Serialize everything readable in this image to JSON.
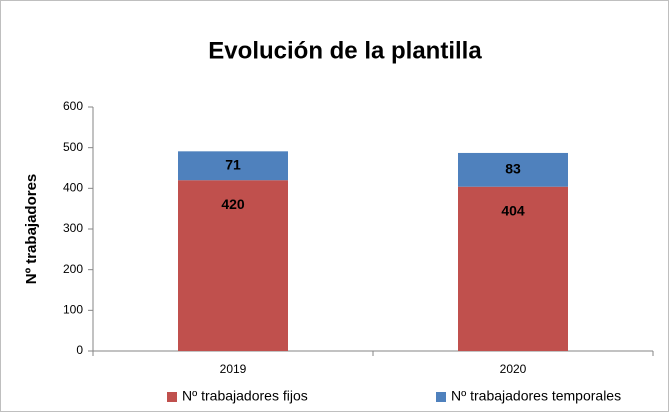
{
  "chart_data": {
    "type": "stacked_bar",
    "title": "Evolución de la plantilla",
    "y_label": "Nº trabajadores",
    "categories": [
      "2019",
      "2020"
    ],
    "series": [
      {
        "name": "Nº trabajadores fijos",
        "color": "#c0504d",
        "values": [
          420,
          404
        ]
      },
      {
        "name": "Nº trabajadores temporales",
        "color": "#4f81bd",
        "values": [
          71,
          83
        ]
      }
    ],
    "ylim": [
      0,
      600
    ],
    "yticks": [
      0,
      100,
      200,
      300,
      400,
      500,
      600
    ],
    "grid": false,
    "legend": "bottom"
  }
}
